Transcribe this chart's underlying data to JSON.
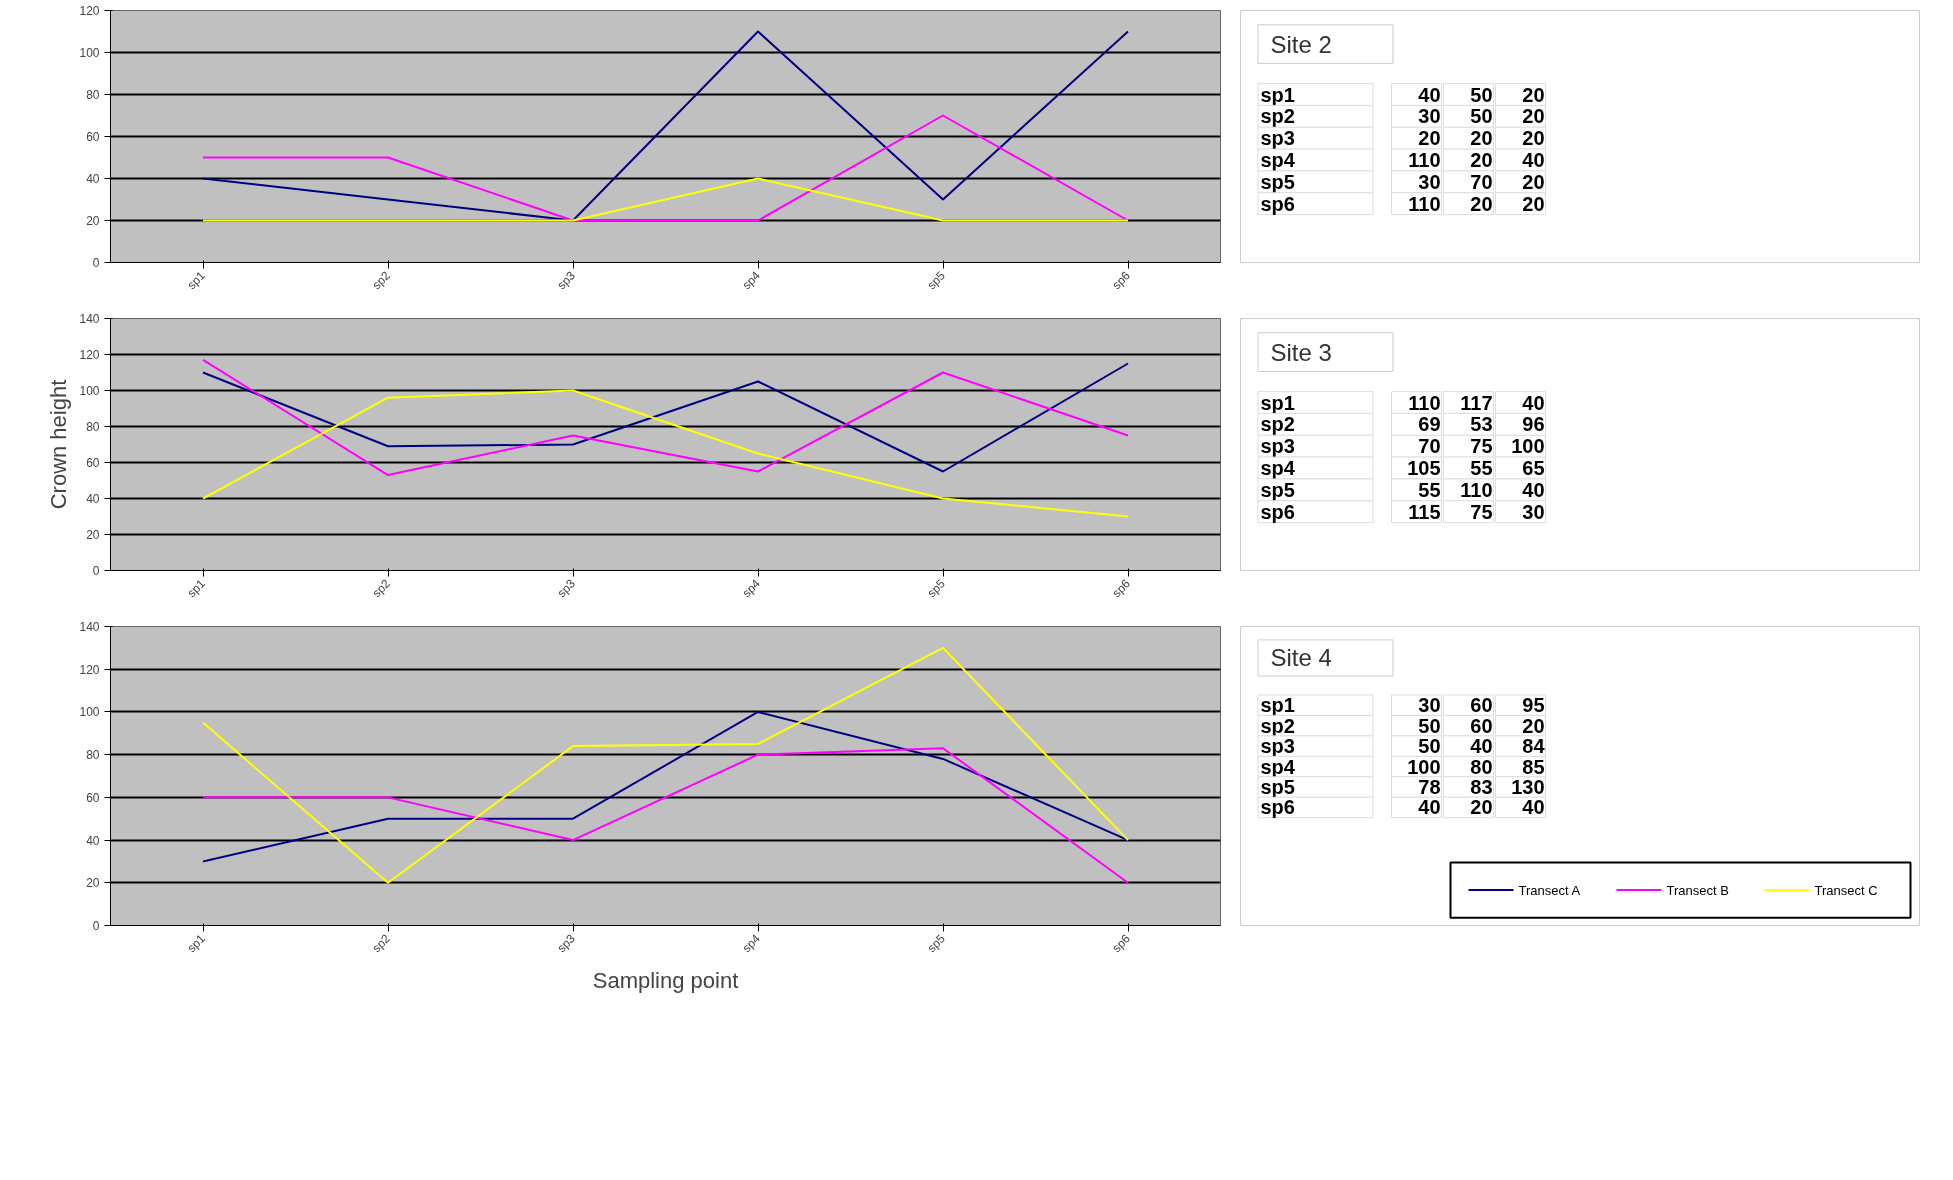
{
  "chart_data": [
    {
      "type": "line",
      "categories": [
        "sp1",
        "sp2",
        "sp3",
        "sp4",
        "sp5",
        "sp6"
      ],
      "ylim": [
        0,
        120
      ],
      "yticks": [
        0,
        20,
        40,
        60,
        80,
        100,
        120
      ],
      "grid": "y",
      "series": [
        {
          "color": "#000080",
          "values": [
            40,
            30,
            20,
            110,
            30,
            110
          ]
        },
        {
          "color": "#ff00ff",
          "values": [
            50,
            50,
            20,
            20,
            70,
            20
          ]
        },
        {
          "color": "#ffff00",
          "values": [
            20,
            20,
            20,
            40,
            20,
            20
          ]
        }
      ]
    },
    {
      "type": "other",
      "title": "Site 2",
      "annotations": [
        "sp1",
        "40",
        "50",
        "20",
        "sp2",
        "30",
        "50",
        "20",
        "sp3",
        "20",
        "20",
        "20",
        "sp4",
        "110",
        "20",
        "40",
        "sp5",
        "30",
        "70",
        "20",
        "sp6",
        "110",
        "20",
        "20"
      ]
    },
    {
      "type": "line",
      "ylabel": "Crown height",
      "categories": [
        "sp1",
        "sp2",
        "sp3",
        "sp4",
        "sp5",
        "sp6"
      ],
      "ylim": [
        0,
        140
      ],
      "yticks": [
        0,
        20,
        40,
        60,
        80,
        100,
        120,
        140
      ],
      "grid": "y",
      "series": [
        {
          "color": "#000080",
          "values": [
            110,
            69,
            70,
            105,
            55,
            115
          ]
        },
        {
          "color": "#ff00ff",
          "values": [
            117,
            53,
            75,
            55,
            110,
            75
          ]
        },
        {
          "color": "#ffff00",
          "values": [
            40,
            96,
            100,
            65,
            40,
            30
          ]
        }
      ]
    },
    {
      "type": "other",
      "title": "Site 3",
      "annotations": [
        "sp1",
        "110",
        "117",
        "40",
        "sp2",
        "69",
        "53",
        "96",
        "sp3",
        "70",
        "75",
        "100",
        "sp4",
        "105",
        "55",
        "65",
        "sp5",
        "55",
        "110",
        "40",
        "sp6",
        "115",
        "75",
        "30"
      ]
    },
    {
      "type": "line",
      "xlabel": "Sampling point",
      "categories": [
        "sp1",
        "sp2",
        "sp3",
        "sp4",
        "sp5",
        "sp6"
      ],
      "ylim": [
        0,
        140
      ],
      "yticks": [
        0,
        20,
        40,
        60,
        80,
        100,
        120,
        140
      ],
      "grid": "y",
      "legend": "bottom right",
      "series": [
        {
          "name": "Transect A",
          "color": "#000080",
          "values": [
            30,
            50,
            50,
            100,
            78,
            40
          ]
        },
        {
          "name": "Transect B",
          "color": "#ff00ff",
          "values": [
            60,
            60,
            40,
            80,
            83,
            20
          ]
        },
        {
          "name": "Transect C",
          "color": "#ffff00",
          "values": [
            95,
            20,
            84,
            85,
            130,
            40
          ]
        }
      ]
    },
    {
      "type": "other",
      "title": "Site 4",
      "annotations": [
        "sp1",
        "30",
        "60",
        "95",
        "sp2",
        "50",
        "60",
        "20",
        "sp3",
        "50",
        "40",
        "84",
        "sp4",
        "100",
        "80",
        "85",
        "sp5",
        "78",
        "83",
        "130",
        "sp6",
        "40",
        "20",
        "40"
      ]
    }
  ]
}
